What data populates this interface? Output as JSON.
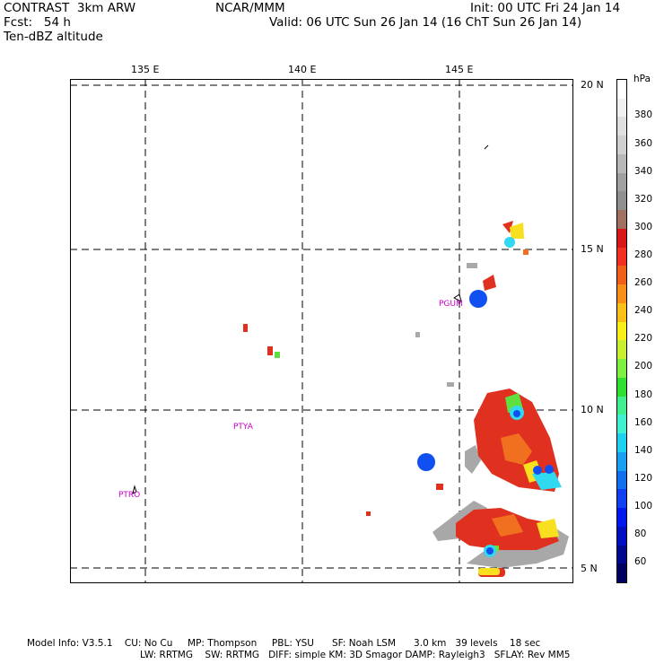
{
  "header": {
    "model": "CONTRAST  3km ARW",
    "org": "NCAR/MMM",
    "init": "Init: 00 UTC Fri 24 Jan 14",
    "fcst": "Fcst:   54 h",
    "valid": "Valid: 06 UTC Sun 26 Jan 14 (16 ChT Sun 26 Jan 14)",
    "field": "Ten-dBZ altitude"
  },
  "map": {
    "lon_ticks": [
      "135 E",
      "140 E",
      "145 E"
    ],
    "lat_ticks": [
      "20 N",
      "15 N",
      "10 N",
      "5 N"
    ],
    "stations": [
      "PGUM",
      "PTYA",
      "PTRO"
    ]
  },
  "colorbar": {
    "unit": "hPa",
    "labels": [
      "380",
      "360",
      "340",
      "320",
      "300",
      "280",
      "260",
      "240",
      "220",
      "200",
      "180",
      "160",
      "140",
      "120",
      "100",
      "80",
      "60"
    ],
    "colors": [
      "#ffffff",
      "#f0f0f0",
      "#e0e0e0",
      "#d0d0d0",
      "#b8b8b8",
      "#a0a0a0",
      "#909090",
      "#a07060",
      "#d81818",
      "#f03020",
      "#f06018",
      "#f89018",
      "#f8c018",
      "#f8f018",
      "#c8f030",
      "#80f040",
      "#30e030",
      "#40f090",
      "#40f0d0",
      "#20d0f0",
      "#1aa0f0",
      "#1070f0",
      "#1040f0",
      "#0018f0",
      "#0010c0",
      "#000890",
      "#000060"
    ]
  },
  "footer": {
    "line1": "Model Info: V3.5.1    CU: No Cu     MP: Thompson     PBL: YSU      SF: Noah LSM      3.0 km   39 levels    18 sec",
    "line2": "LW: RRTMG    SW: RRTMG   DIFF: simple KM: 3D Smagor DAMP: Rayleigh3   SFLAY: Rev MM5"
  }
}
